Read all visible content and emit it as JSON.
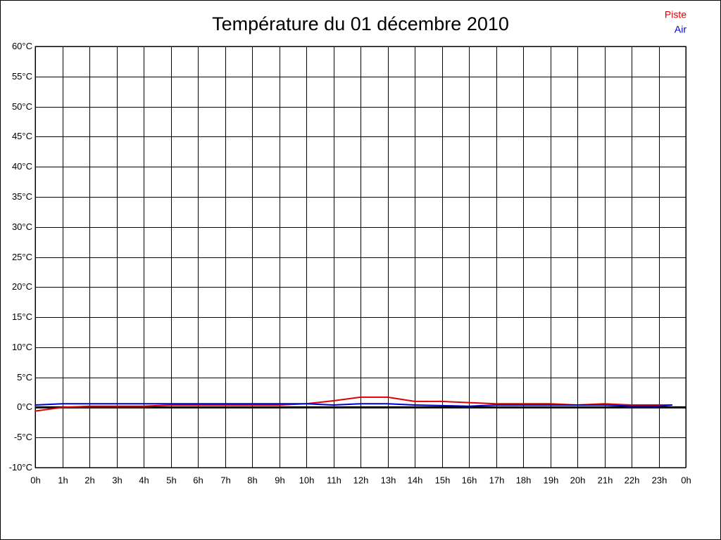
{
  "chart_data": {
    "type": "line",
    "title": "Température du 01 décembre 2010",
    "x": [
      0,
      1,
      2,
      3,
      4,
      5,
      6,
      7,
      8,
      9,
      10,
      11,
      12,
      13,
      14,
      15,
      16,
      17,
      18,
      19,
      20,
      21,
      22,
      23,
      23.5
    ],
    "series": [
      {
        "name": "Piste",
        "color": "#dd0000",
        "values": [
          -0.6,
          0,
          0.2,
          0.2,
          0.2,
          0.4,
          0.4,
          0.4,
          0.4,
          0.4,
          0.6,
          1.1,
          1.7,
          1.7,
          1.0,
          1.0,
          0.8,
          0.6,
          0.6,
          0.6,
          0.4,
          0.6,
          0.4,
          0.4,
          0.4
        ]
      },
      {
        "name": "Air",
        "color": "#0000cc",
        "values": [
          0.4,
          0.6,
          0.6,
          0.6,
          0.6,
          0.6,
          0.6,
          0.6,
          0.6,
          0.6,
          0.6,
          0.4,
          0.6,
          0.6,
          0.4,
          0.3,
          0.2,
          0.4,
          0.4,
          0.4,
          0.4,
          0.4,
          0.2,
          0.2,
          0.4
        ]
      }
    ],
    "xlim": [
      0,
      24
    ],
    "xticks": [
      {
        "value": 0,
        "label": "0h"
      },
      {
        "value": 1,
        "label": "1h"
      },
      {
        "value": 2,
        "label": "2h"
      },
      {
        "value": 3,
        "label": "3h"
      },
      {
        "value": 4,
        "label": "4h"
      },
      {
        "value": 5,
        "label": "5h"
      },
      {
        "value": 6,
        "label": "6h"
      },
      {
        "value": 7,
        "label": "7h"
      },
      {
        "value": 8,
        "label": "8h"
      },
      {
        "value": 9,
        "label": "9h"
      },
      {
        "value": 10,
        "label": "10h"
      },
      {
        "value": 11,
        "label": "11h"
      },
      {
        "value": 12,
        "label": "12h"
      },
      {
        "value": 13,
        "label": "13h"
      },
      {
        "value": 14,
        "label": "14h"
      },
      {
        "value": 15,
        "label": "15h"
      },
      {
        "value": 16,
        "label": "16h"
      },
      {
        "value": 17,
        "label": "17h"
      },
      {
        "value": 18,
        "label": "18h"
      },
      {
        "value": 19,
        "label": "19h"
      },
      {
        "value": 20,
        "label": "20h"
      },
      {
        "value": 21,
        "label": "21h"
      },
      {
        "value": 22,
        "label": "22h"
      },
      {
        "value": 23,
        "label": "23h"
      },
      {
        "value": 24,
        "label": "0h"
      }
    ],
    "ylim": [
      -10,
      60
    ],
    "yticks": [
      {
        "value": -10,
        "label": "-10°C"
      },
      {
        "value": -5,
        "label": "-5°C"
      },
      {
        "value": 0,
        "label": "0°C"
      },
      {
        "value": 5,
        "label": "5°C"
      },
      {
        "value": 10,
        "label": "10°C"
      },
      {
        "value": 15,
        "label": "15°C"
      },
      {
        "value": 20,
        "label": "20°C"
      },
      {
        "value": 25,
        "label": "25°C"
      },
      {
        "value": 30,
        "label": "30°C"
      },
      {
        "value": 35,
        "label": "35°C"
      },
      {
        "value": 40,
        "label": "40°C"
      },
      {
        "value": 45,
        "label": "45°C"
      },
      {
        "value": 50,
        "label": "50°C"
      },
      {
        "value": 55,
        "label": "55°C"
      },
      {
        "value": 60,
        "label": "60°C"
      }
    ],
    "grid": true
  }
}
